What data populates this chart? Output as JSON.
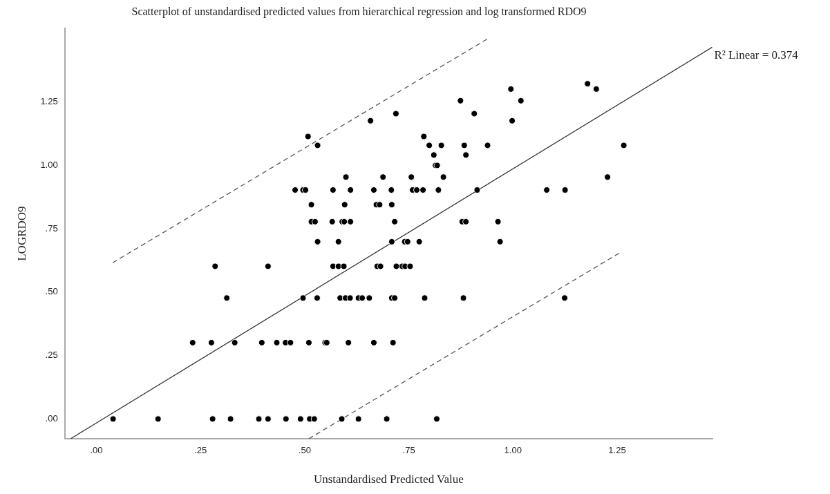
{
  "chart_data": {
    "type": "scatter",
    "title": "Scatterplot of unstandardised predicted values from hierarchical regression and log transformed RDO9",
    "xlabel": "Unstandardised Predicted Value",
    "ylabel": "LOGRDO9",
    "xlim": [
      -0.076,
      1.479
    ],
    "ylim": [
      -0.078,
      1.54
    ],
    "xticks": [
      {
        "value": 0,
        "label": ".00"
      },
      {
        "value": 0.25,
        "label": ".25"
      },
      {
        "value": 0.5,
        "label": ".50"
      },
      {
        "value": 0.75,
        "label": ".75"
      },
      {
        "value": 1,
        "label": "1.00"
      },
      {
        "value": 1.25,
        "label": "1.25"
      }
    ],
    "yticks": [
      {
        "value": 0,
        "label": ".00"
      },
      {
        "value": 0.25,
        "label": ".25"
      },
      {
        "value": 0.5,
        "label": ".50"
      },
      {
        "value": 0.75,
        "label": ".75"
      },
      {
        "value": 1,
        "label": "1.00"
      },
      {
        "value": 1.25,
        "label": "1.25"
      }
    ],
    "grid": false,
    "legend": false,
    "series": [
      {
        "type": "scatter",
        "marker": "circle",
        "color": "#000000",
        "x": [
          1.179,
          0.995,
          1.2,
          0.874,
          1.019,
          0.719,
          0.907,
          0.658,
          0.998,
          0.508,
          0.786,
          0.531,
          0.799,
          0.828,
          0.883,
          0.939,
          1.266,
          0.81,
          0.887,
          0.814,
          0.818,
          0.599,
          0.688,
          0.756,
          0.833,
          1.227,
          0.477,
          0.496,
          0.502,
          0.568,
          0.61,
          0.666,
          0.708,
          0.759,
          0.769,
          0.784,
          0.821,
          0.914,
          1.081,
          1.125,
          0.516,
          0.596,
          0.672,
          0.68,
          0.709,
          0.516,
          0.525,
          0.566,
          0.59,
          0.595,
          0.61,
          0.716,
          0.878,
          0.887,
          0.964,
          0.531,
          0.581,
          0.709,
          0.74,
          0.747,
          0.775,
          0.969,
          0.285,
          0.412,
          0.568,
          0.581,
          0.594,
          0.674,
          0.682,
          0.72,
          0.734,
          0.741,
          0.753,
          0.313,
          0.496,
          0.53,
          0.585,
          0.598,
          0.609,
          0.629,
          0.638,
          0.655,
          0.709,
          0.716,
          0.788,
          0.881,
          1.124,
          0.231,
          0.276,
          0.332,
          0.397,
          0.433,
          0.454,
          0.466,
          0.51,
          0.549,
          0.553,
          0.605,
          0.666,
          0.712,
          0.04,
          0.148,
          0.279,
          0.322,
          0.39,
          0.412,
          0.455,
          0.49,
          0.512,
          0.523,
          0.589,
          0.629,
          0.697,
          0.817
        ],
        "values": [
          1.322,
          1.301,
          1.301,
          1.255,
          1.255,
          1.204,
          1.204,
          1.176,
          1.176,
          1.114,
          1.114,
          1.079,
          1.079,
          1.079,
          1.079,
          1.079,
          1.079,
          1.041,
          1.041,
          1.0,
          1.0,
          0.954,
          0.954,
          0.954,
          0.954,
          0.954,
          0.903,
          0.903,
          0.903,
          0.903,
          0.903,
          0.903,
          0.903,
          0.903,
          0.903,
          0.903,
          0.903,
          0.903,
          0.903,
          0.903,
          0.845,
          0.845,
          0.845,
          0.845,
          0.845,
          0.778,
          0.778,
          0.778,
          0.778,
          0.778,
          0.778,
          0.778,
          0.778,
          0.778,
          0.778,
          0.699,
          0.699,
          0.699,
          0.699,
          0.699,
          0.699,
          0.699,
          0.602,
          0.602,
          0.602,
          0.602,
          0.602,
          0.602,
          0.602,
          0.602,
          0.602,
          0.602,
          0.602,
          0.477,
          0.477,
          0.477,
          0.477,
          0.477,
          0.477,
          0.477,
          0.477,
          0.477,
          0.477,
          0.477,
          0.477,
          0.477,
          0.477,
          0.301,
          0.301,
          0.301,
          0.301,
          0.301,
          0.301,
          0.301,
          0.301,
          0.301,
          0.301,
          0.301,
          0.301,
          0.301,
          0,
          0,
          0,
          0,
          0,
          0,
          0,
          0,
          0,
          0,
          0,
          0,
          0,
          0
        ]
      },
      {
        "type": "line",
        "marker": "none",
        "color": "#333333",
        "line_style": "solid",
        "x": [
          -0.062,
          1.478
        ],
        "values": [
          -0.078,
          1.466
        ]
      },
      {
        "type": "line",
        "marker": "none",
        "color": "#555555",
        "line_style": "dashed",
        "x": [
          0.039,
          0.94
        ],
        "values": [
          0.616,
          1.5
        ]
      },
      {
        "type": "line",
        "marker": "none",
        "color": "#555555",
        "line_style": "dashed",
        "x": [
          0.51,
          1.257
        ],
        "values": [
          -0.078,
          0.656
        ]
      }
    ],
    "annotations": [
      {
        "text": "R² Linear = 0.374",
        "x": 1.478,
        "y": 1.466
      }
    ]
  }
}
